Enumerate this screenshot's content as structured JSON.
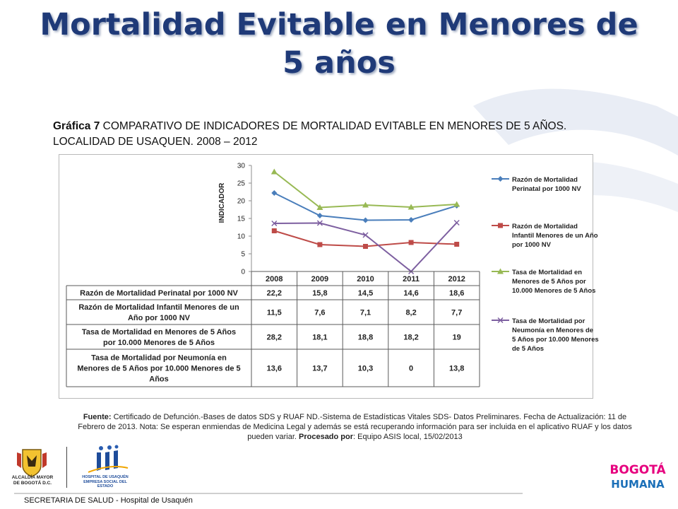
{
  "slide": {
    "title": "Mortalidad Evitable en Menores de 5 años",
    "graph_label": "Gráfica 7",
    "graph_caption": " COMPARATIVO DE INDICADORES DE MORTALIDAD EVITABLE EN MENORES DE 5 AÑOS. LOCALIDAD DE USAQUEN. 2008 – 2012",
    "source_label": "Fuente:",
    "source_text": " Certificado de Defunción.-Bases de datos SDS y RUAF ND.-Sistema de Estadísticas Vitales SDS- Datos Preliminares. Fecha de Actualización: 11 de Febrero de 2013. Nota: Se esperan enmiendas de Medicina Legal y además se está recuperando  información para ser incluida en el aplicativo RUAF y los datos pueden variar. ",
    "processed_label": "Procesado por",
    "processed_text": ": Equipo ASIS local, 15/02/2013",
    "footer": "SECRETARIA DE SALUD - Hospital de Usaquén",
    "logo_alcaldia_text": "ALCALDÍA MAYOR DE BOGOTÁ D.C.",
    "logo_hospital_text": "HOSPITAL DE USAQUÉN EMPRESA SOCIAL DEL ESTADO",
    "logo_bogota_line1": "BOGOTÁ",
    "logo_bogota_line2": "HUMANA"
  },
  "colors": {
    "title": "#1f3a78",
    "series": [
      "#4a7ebb",
      "#be4b48",
      "#98b954",
      "#7d5fa0"
    ]
  },
  "chart_data": {
    "type": "line",
    "ylabel": "INDICADOR",
    "ylim": [
      0,
      30
    ],
    "yticks": [
      "0",
      "5",
      "10",
      "15",
      "20",
      "25",
      "30"
    ],
    "categories": [
      "2008",
      "2009",
      "2010",
      "2011",
      "2012"
    ],
    "series": [
      {
        "name": "Razón de Mortalidad Perinatal por 1000 NV",
        "legend_lines": [
          "Razón de Mortalidad",
          "Perinatal por 1000 NV"
        ],
        "row_lines": [
          "Razón de Mortalidad Perinatal por 1000 NV"
        ],
        "marker": "diamond",
        "values": [
          22.2,
          15.8,
          14.5,
          14.6,
          18.6
        ],
        "labels": [
          "22,2",
          "15,8",
          "14,5",
          "14,6",
          "18,6"
        ]
      },
      {
        "name": "Razón de Mortalidad Infantil Menores de  un Año por 1000 NV",
        "legend_lines": [
          "Razón de Mortalidad",
          "Infantil Menores de  un Año",
          "por 1000 NV"
        ],
        "row_lines": [
          "Razón de Mortalidad Infantil Menores de  un",
          "Año por 1000 NV"
        ],
        "marker": "square",
        "values": [
          11.5,
          7.6,
          7.1,
          8.2,
          7.7
        ],
        "labels": [
          "11,5",
          "7,6",
          "7,1",
          "8,2",
          "7,7"
        ]
      },
      {
        "name": "Tasa de Mortalidad en Menores de  5 Años por 10.000 Menores de 5 Años",
        "legend_lines": [
          "Tasa de Mortalidad en",
          "Menores de  5 Años por",
          "10.000 Menores de 5 Años"
        ],
        "row_lines": [
          "Tasa de Mortalidad en Menores de  5 Años",
          "por 10.000 Menores de 5 Años"
        ],
        "marker": "triangle",
        "values": [
          28.2,
          18.1,
          18.8,
          18.2,
          19
        ],
        "labels": [
          "28,2",
          "18,1",
          "18,8",
          "18,2",
          "19"
        ]
      },
      {
        "name": "Tasa de Mortalidad por Neumonía en Menores de  5 Años por 10.000 Menores de 5 Años",
        "legend_lines": [
          "Tasa de Mortalidad por",
          "Neumonía en Menores de",
          "5 Años por 10.000 Menores",
          "de 5 Años"
        ],
        "row_lines": [
          "Tasa de Mortalidad por Neumonía en",
          "Menores de  5 Años por 10.000 Menores de 5",
          "Años"
        ],
        "marker": "x",
        "values": [
          13.6,
          13.7,
          10.3,
          0,
          13.8
        ],
        "labels": [
          "13,6",
          "13,7",
          "10,3",
          "0",
          "13,8"
        ]
      }
    ]
  }
}
